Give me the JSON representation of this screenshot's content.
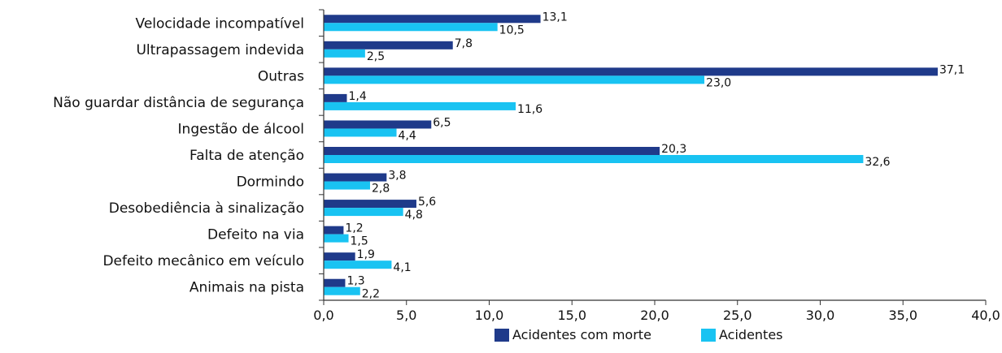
{
  "chart_data": {
    "type": "bar",
    "orientation": "horizontal",
    "title": "",
    "xlabel": "",
    "ylabel": "",
    "xlim": [
      0,
      40
    ],
    "xticks": [
      "0,0",
      "5,0",
      "10,0",
      "15,0",
      "20,0",
      "25,0",
      "30,0",
      "35,0",
      "40,0"
    ],
    "xtick_values": [
      0,
      5,
      10,
      15,
      20,
      25,
      30,
      35,
      40
    ],
    "categories": [
      "Velocidade incompatível",
      "Ultrapassagem indevida",
      "Outras",
      "Não guardar distância de segurança",
      "Ingestão de álcool",
      "Falta de atenção",
      "Dormindo",
      "Desobediência à sinalização",
      "Defeito na via",
      "Defeito mecânico em veículo",
      "Animais na pista"
    ],
    "series": [
      {
        "name": "Acidentes com morte",
        "color": "#1f3a8a",
        "values": [
          13.1,
          7.8,
          37.1,
          1.4,
          6.5,
          20.3,
          3.8,
          5.6,
          1.2,
          1.9,
          1.3
        ],
        "labels": [
          "13,1",
          "7,8",
          "37,1",
          "1,4",
          "6,5",
          "20,3",
          "3,8",
          "5,6",
          "1,2",
          "1,9",
          "1,3"
        ]
      },
      {
        "name": "Acidentes",
        "color": "#19c3f2",
        "values": [
          10.5,
          2.5,
          23.0,
          11.6,
          4.4,
          32.6,
          2.8,
          4.8,
          1.5,
          4.1,
          2.2
        ],
        "labels": [
          "10,5",
          "2,5",
          "23,0",
          "11,6",
          "4,4",
          "32,6",
          "2,8",
          "4,8",
          "1,5",
          "4,1",
          "2,2"
        ]
      }
    ],
    "legend_position": "bottom",
    "grid": false
  }
}
